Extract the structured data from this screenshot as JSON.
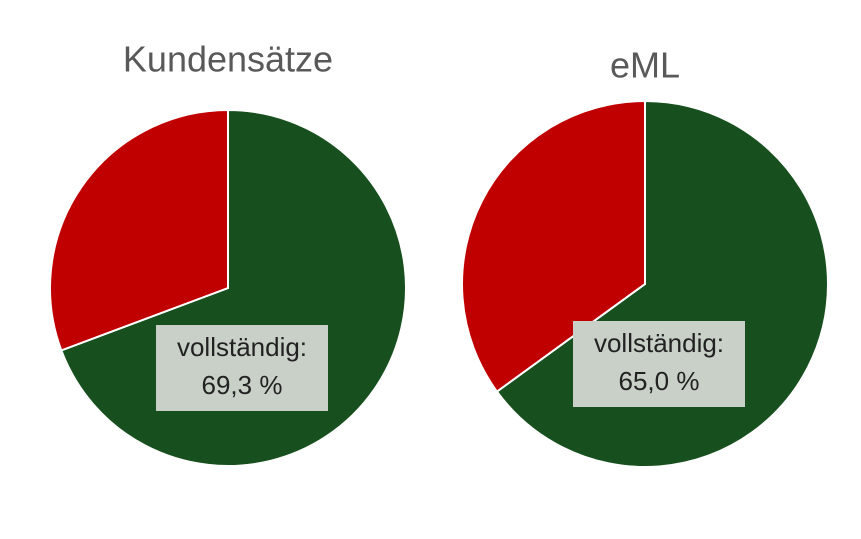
{
  "chart_data": [
    {
      "type": "pie",
      "title": "Kundensätze",
      "categories": [
        "vollständig:",
        null
      ],
      "values": [
        69.3,
        30.7
      ],
      "value_labels": [
        "69,3 %",
        null
      ],
      "colors": [
        "#17501e",
        "#c00000"
      ]
    },
    {
      "type": "pie",
      "title": "eML",
      "categories": [
        "vollständig:",
        null
      ],
      "values": [
        65.0,
        35.0
      ],
      "value_labels": [
        "65,0 %",
        null
      ],
      "colors": [
        "#17501e",
        "#c00000"
      ]
    }
  ]
}
